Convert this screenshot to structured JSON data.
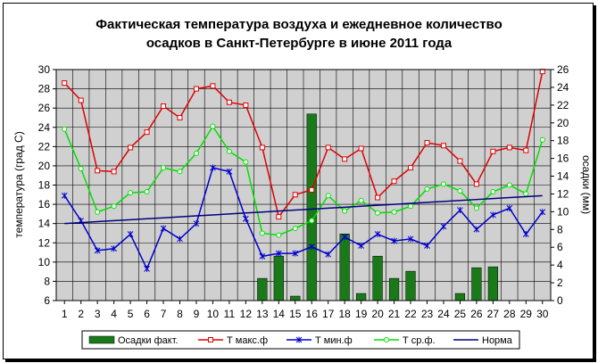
{
  "chart_data": {
    "type": "bar+line",
    "title_line1": "Фактическая температура воздуха и ежедневное количество",
    "title_line2": "осадков в Санкт-Петербурге в июне 2011 года",
    "ylabel_left": "температура (град С)",
    "ylabel_right": "осадки (мм)",
    "ylim_left": [
      6,
      30
    ],
    "ylim_right": [
      0,
      26
    ],
    "yticks_left": [
      "6",
      "8",
      "10",
      "12",
      "14",
      "16",
      "18",
      "20",
      "22",
      "24",
      "26",
      "28",
      "30"
    ],
    "yticks_right": [
      "0",
      "2",
      "4",
      "6",
      "8",
      "10",
      "12",
      "14",
      "16",
      "18",
      "20",
      "22",
      "24",
      "26"
    ],
    "days": [
      "1",
      "2",
      "3",
      "4",
      "5",
      "6",
      "7",
      "8",
      "9",
      "10",
      "11",
      "12",
      "13",
      "14",
      "15",
      "16",
      "17",
      "18",
      "19",
      "20",
      "21",
      "22",
      "23",
      "24",
      "25",
      "26",
      "27",
      "28",
      "29",
      "30"
    ],
    "grid": true,
    "legend_position": "bottom",
    "series": [
      {
        "name": "Осадки факт.",
        "axis": "right",
        "kind": "bar",
        "values": [
          0,
          0,
          0,
          0,
          0,
          0,
          0,
          0,
          0,
          0,
          0,
          0,
          2.5,
          5,
          0.5,
          21,
          0,
          7.5,
          0.8,
          5,
          2.5,
          3.3,
          0,
          0,
          0.8,
          3.7,
          3.8,
          0,
          0,
          0
        ]
      },
      {
        "name": "Т макс.ф",
        "axis": "left",
        "kind": "line",
        "values": [
          28.6,
          26.8,
          19.5,
          19.4,
          21.9,
          23.5,
          26.2,
          25.0,
          28.0,
          28.3,
          26.6,
          26.3,
          21.9,
          14.7,
          17.0,
          17.5,
          21.9,
          20.7,
          21.8,
          16.7,
          18.4,
          19.8,
          22.4,
          22.1,
          20.5,
          18.1,
          21.5,
          21.9,
          21.6,
          29.8
        ]
      },
      {
        "name": "Т мин.ф",
        "axis": "left",
        "kind": "line",
        "values": [
          16.9,
          14.3,
          11.2,
          11.4,
          12.9,
          9.3,
          13.5,
          12.4,
          14.0,
          19.8,
          19.4,
          14.5,
          10.6,
          10.9,
          10.9,
          11.6,
          10.8,
          12.6,
          11.7,
          12.9,
          12.2,
          12.4,
          11.7,
          13.7,
          15.4,
          13.4,
          14.9,
          15.6,
          12.9,
          15.2
        ]
      },
      {
        "name": "Т ср.ф.",
        "axis": "left",
        "kind": "line",
        "values": [
          23.8,
          19.7,
          15.2,
          15.8,
          17.2,
          17.3,
          19.8,
          19.4,
          21.3,
          24.1,
          21.5,
          20.4,
          13.0,
          12.8,
          13.5,
          14.3,
          16.9,
          15.3,
          16.4,
          15.1,
          15.2,
          15.8,
          17.6,
          18.1,
          17.4,
          15.6,
          17.3,
          18.0,
          17.1,
          22.7
        ]
      },
      {
        "name": "Норма",
        "axis": "left",
        "kind": "line",
        "values": [
          14.0,
          14.1,
          14.2,
          14.3,
          14.4,
          14.5,
          14.6,
          14.7,
          14.8,
          14.9,
          15.0,
          15.1,
          15.2,
          15.3,
          15.4,
          15.5,
          15.6,
          15.7,
          15.8,
          15.9,
          16.0,
          16.1,
          16.2,
          16.3,
          16.4,
          16.5,
          16.6,
          16.7,
          16.8,
          16.9
        ]
      }
    ],
    "colors": {
      "bar": "#1a7a1a",
      "tmax": "#e00000",
      "tmin": "#0000cc",
      "tavg": "#00e000",
      "norm": "#000080",
      "plot_bg": "#d0d0d0"
    }
  }
}
